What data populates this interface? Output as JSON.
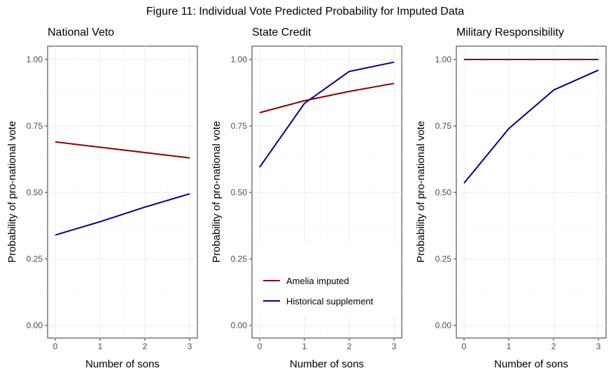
{
  "figure_title": "Figure 11: Individual Vote Predicted Probability for Imputed Data",
  "legend": {
    "items": [
      {
        "label": "Amelia imputed",
        "color": "#8b0000"
      },
      {
        "label": "Historical supplement",
        "color": "#00008b"
      }
    ]
  },
  "chart_data": [
    {
      "type": "line",
      "title": "National Veto",
      "xlabel": "Number of sons",
      "ylabel": "Probability of pro-national vote",
      "x": [
        0,
        1,
        2,
        3
      ],
      "xticks": [
        "0",
        "1",
        "2",
        "3"
      ],
      "yticks": [
        "0.00",
        "0.25",
        "0.50",
        "0.75",
        "1.00"
      ],
      "ylim": [
        0,
        1
      ],
      "grid": true,
      "series": [
        {
          "name": "Amelia imputed",
          "color": "#8b0000",
          "values": [
            0.69,
            0.67,
            0.65,
            0.63
          ]
        },
        {
          "name": "Historical supplement",
          "color": "#00008b",
          "values": [
            0.34,
            0.39,
            0.445,
            0.495
          ]
        }
      ]
    },
    {
      "type": "line",
      "title": "State Credit",
      "xlabel": "Number of sons",
      "ylabel": "Probability of pro-national vote",
      "x": [
        0,
        1,
        2,
        3
      ],
      "xticks": [
        "0",
        "1",
        "2",
        "3"
      ],
      "yticks": [
        "0.00",
        "0.25",
        "0.50",
        "0.75",
        "1.00"
      ],
      "ylim": [
        0,
        1
      ],
      "grid": true,
      "legend_position": "bottom-left",
      "series": [
        {
          "name": "Amelia imputed",
          "color": "#8b0000",
          "values": [
            0.8,
            0.845,
            0.88,
            0.91
          ]
        },
        {
          "name": "Historical supplement",
          "color": "#00008b",
          "values": [
            0.595,
            0.835,
            0.955,
            0.99
          ]
        }
      ]
    },
    {
      "type": "line",
      "title": "Military Responsibility",
      "xlabel": "Number of sons",
      "ylabel": "Probability of pro-national vote",
      "x": [
        0,
        1,
        2,
        3
      ],
      "xticks": [
        "0",
        "1",
        "2",
        "3"
      ],
      "yticks": [
        "0.00",
        "0.25",
        "0.50",
        "0.75",
        "1.00"
      ],
      "ylim": [
        0,
        1
      ],
      "grid": true,
      "series": [
        {
          "name": "Amelia imputed",
          "color": "#8b0000",
          "values": [
            1.0,
            1.0,
            1.0,
            1.0
          ]
        },
        {
          "name": "Historical supplement",
          "color": "#00008b",
          "values": [
            0.535,
            0.74,
            0.885,
            0.96
          ]
        }
      ]
    }
  ]
}
